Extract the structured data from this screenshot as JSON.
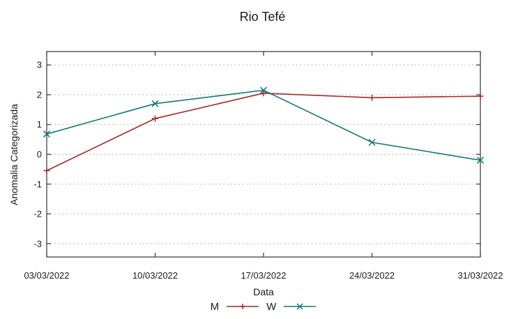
{
  "chart_data": {
    "type": "line",
    "title": "Rio Tefé",
    "xlabel": "Data",
    "ylabel": "Anomalia Categorizada",
    "categories": [
      "03/03/2022",
      "10/03/2022",
      "17/03/2022",
      "24/03/2022",
      "31/03/2022"
    ],
    "series": [
      {
        "name": "M",
        "color": "#a62724",
        "marker": "plus",
        "values": [
          -0.55,
          1.2,
          2.05,
          1.9,
          1.95
        ]
      },
      {
        "name": "W",
        "color": "#127878",
        "marker": "cross",
        "values": [
          0.68,
          1.7,
          2.15,
          0.4,
          -0.2
        ]
      }
    ],
    "yticks": [
      -3,
      -2,
      -1,
      0,
      1,
      2,
      3
    ],
    "ylim": [
      -3.45,
      3.45
    ],
    "grid": "horizontal-dashed",
    "legend_position": "bottom-center",
    "colors": {
      "axis": "#333333",
      "grid": "#b5b5b5",
      "text": "#1a1a1a",
      "background": "#ffffff"
    }
  }
}
